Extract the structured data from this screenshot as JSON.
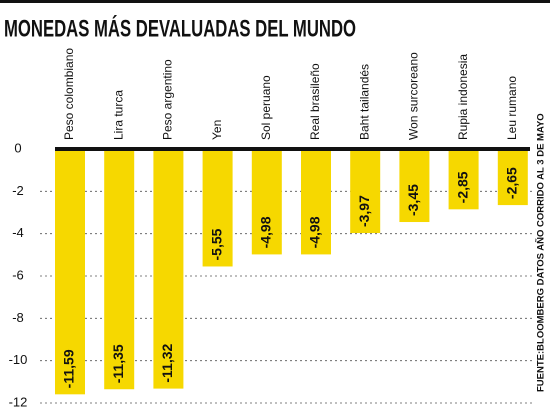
{
  "chart_data": {
    "type": "bar",
    "title": "MONEDAS MÁS DEVALUADAS DEL MUNDO",
    "source": "FUENTE:BLOOMBERG DATOS AÑO CORRIDO AL 3 DE MAYO",
    "categories": [
      "Peso colombiano",
      "Lira turca",
      "Peso argentino",
      "Yen",
      "Sol peruano",
      "Real brasileño",
      "Baht tailandés",
      "Won surcoreano",
      "Rupia indonesia",
      "Leu rumano"
    ],
    "values": [
      -11.59,
      -11.35,
      -11.32,
      -5.55,
      -4.98,
      -4.98,
      -3.97,
      -3.45,
      -2.85,
      -2.65
    ],
    "value_labels": [
      "-11,59",
      "-11,35",
      "-11,32",
      "-5,55",
      "-4,98",
      "-4,98",
      "-3,97",
      "-3,45",
      "-2,85",
      "-2,65"
    ],
    "color": "#f6d800",
    "ylim": [
      -12,
      0
    ],
    "yticks": [
      0,
      -2,
      -4,
      -6,
      -8,
      -10,
      -12
    ],
    "grid": true
  }
}
